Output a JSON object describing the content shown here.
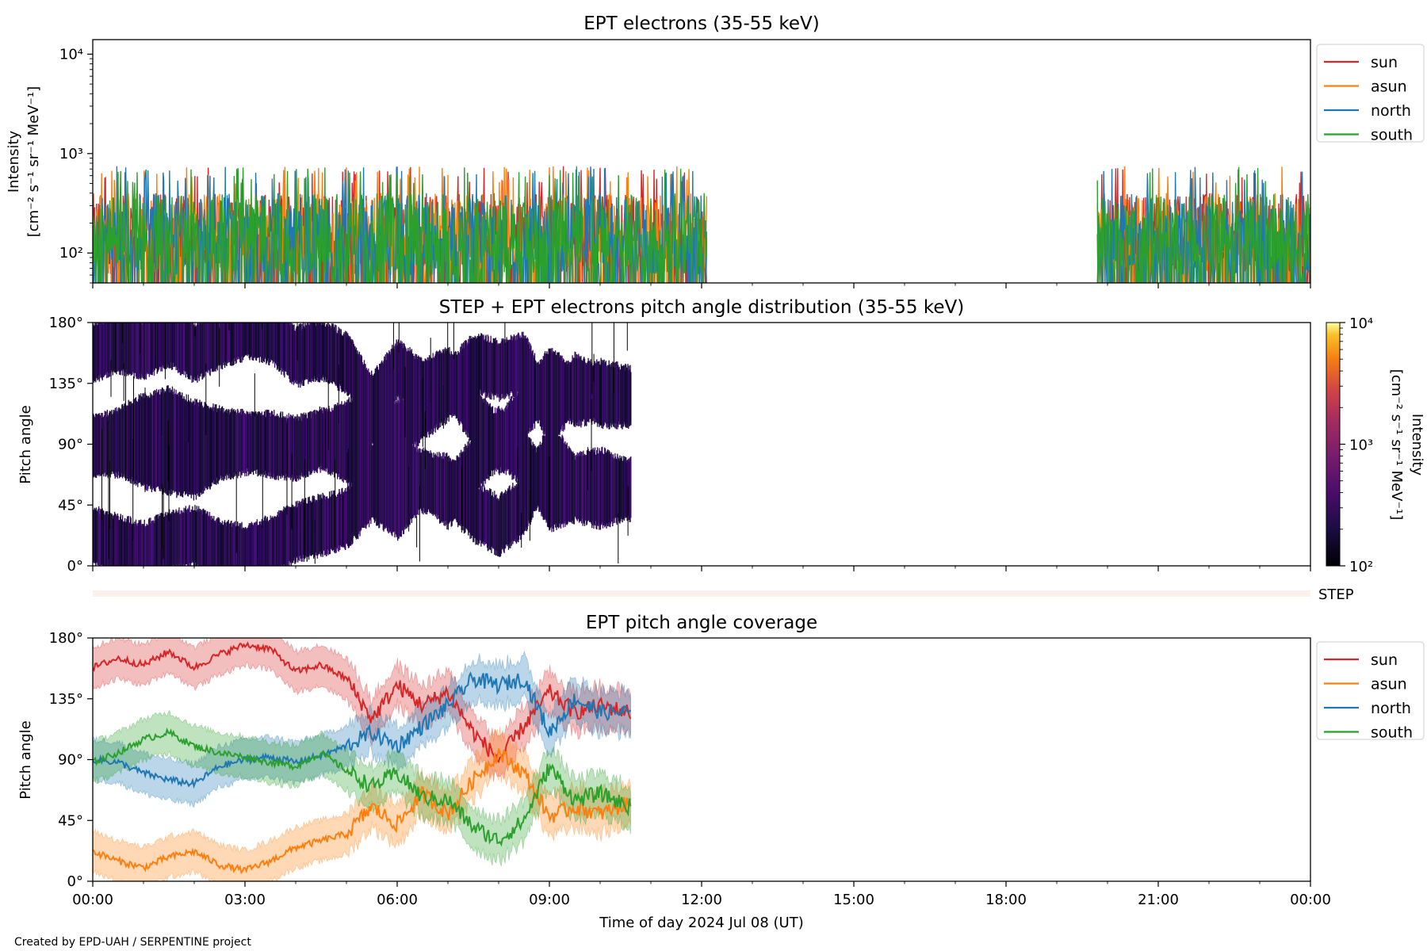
{
  "credit": "Created by EPD-UAH / SERPENTINE project",
  "xlabel": "Time of day 2024 Jul 08 (UT)",
  "time_ticks": [
    "00:00",
    "03:00",
    "06:00",
    "09:00",
    "12:00",
    "15:00",
    "18:00",
    "21:00",
    "00:00"
  ],
  "colors": {
    "sun": "#d62728",
    "asun": "#ff7f0e",
    "north": "#1f77b4",
    "south": "#2ca02c"
  },
  "chart_data": [
    {
      "type": "line",
      "title": "EPT electrons (35-55 keV)",
      "ylabel_line1": "Intensity",
      "ylabel_line2": "[cm⁻² s⁻¹ sr⁻¹ MeV⁻¹]",
      "yscale": "log",
      "ylim": [
        50,
        14000
      ],
      "ytick_labels": [
        "10²",
        "10³",
        "10⁴"
      ],
      "ytick_values": [
        100,
        1000,
        10000
      ],
      "xlim_hours": [
        0,
        24
      ],
      "legend_position": "outside-right-top",
      "data_segments_hours": [
        [
          0,
          12.1
        ],
        [
          19.8,
          24
        ]
      ],
      "typical_range": [
        60,
        400
      ],
      "series": [
        {
          "name": "sun",
          "color": "#d62728"
        },
        {
          "name": "asun",
          "color": "#ff7f0e"
        },
        {
          "name": "north",
          "color": "#1f77b4"
        },
        {
          "name": "south",
          "color": "#2ca02c"
        }
      ],
      "sample_peaks": [
        {
          "hour": 0.4,
          "value": 400
        },
        {
          "hour": 3.3,
          "value": 600
        },
        {
          "hour": 7.6,
          "value": 700
        },
        {
          "hour": 11.9,
          "value": 280
        },
        {
          "hour": 19.8,
          "value": 280
        },
        {
          "hour": 22.0,
          "value": 550
        }
      ]
    },
    {
      "type": "heatmap",
      "title": "STEP + EPT electrons pitch angle distribution (35-55 keV)",
      "ylabel": "Pitch angle",
      "yticks": [
        "0°",
        "45°",
        "90°",
        "135°",
        "180°"
      ],
      "ylim": [
        0,
        180
      ],
      "data_extent_hours": [
        0,
        10.6
      ],
      "colorbar": {
        "label_line1": "Intensity",
        "label_line2": "[cm⁻² s⁻¹ sr⁻¹ MeV⁻¹]",
        "scale": "log",
        "range": [
          100,
          10000
        ],
        "tick_labels": [
          "10²",
          "10³",
          "10⁴"
        ],
        "colormap": "inferno"
      }
    },
    {
      "type": "heatmap",
      "title": "",
      "label": "STEP",
      "note": "empty strip"
    },
    {
      "type": "line",
      "title": "EPT pitch angle coverage",
      "ylabel": "Pitch angle",
      "yticks": [
        "0°",
        "45°",
        "90°",
        "135°",
        "180°"
      ],
      "ylim": [
        0,
        180
      ],
      "xlim_hours": [
        0,
        24
      ],
      "legend_position": "outside-right-top",
      "x_hours": [
        0,
        0.5,
        1,
        1.5,
        2,
        2.5,
        3,
        3.5,
        4,
        4.5,
        5,
        5.5,
        6,
        6.5,
        7,
        7.5,
        8,
        8.5,
        9,
        9.5,
        10,
        10.6
      ],
      "series": [
        {
          "name": "sun",
          "color": "#d62728",
          "values": [
            158,
            165,
            160,
            170,
            158,
            168,
            175,
            172,
            155,
            160,
            150,
            120,
            145,
            130,
            140,
            110,
            90,
            115,
            140,
            125,
            130,
            125
          ]
        },
        {
          "name": "asun",
          "color": "#ff7f0e",
          "values": [
            22,
            15,
            10,
            18,
            22,
            12,
            8,
            15,
            25,
            30,
            35,
            55,
            42,
            65,
            50,
            75,
            95,
            80,
            48,
            55,
            50,
            58
          ]
        },
        {
          "name": "north",
          "color": "#1f77b4",
          "values": [
            90,
            88,
            80,
            75,
            72,
            85,
            90,
            92,
            88,
            93,
            100,
            110,
            100,
            115,
            130,
            150,
            145,
            150,
            110,
            135,
            125,
            125
          ]
        },
        {
          "name": "south",
          "color": "#2ca02c",
          "values": [
            88,
            95,
            105,
            110,
            100,
            95,
            92,
            88,
            85,
            95,
            82,
            70,
            80,
            62,
            60,
            40,
            30,
            45,
            85,
            60,
            65,
            55
          ]
        }
      ]
    }
  ]
}
